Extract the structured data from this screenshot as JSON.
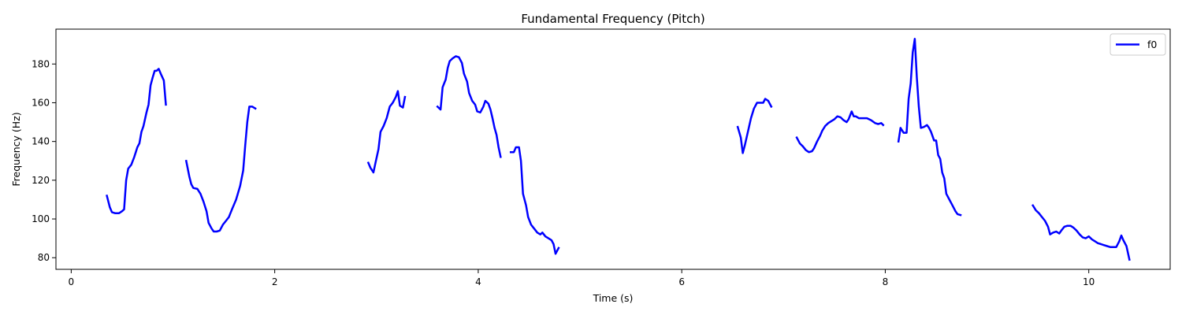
{
  "chart_data": {
    "type": "line",
    "title": "Fundamental Frequency (Pitch)",
    "xlabel": "Time (s)",
    "ylabel": "Frequency (Hz)",
    "xlim": [
      -0.15,
      10.8
    ],
    "ylim": [
      74,
      198
    ],
    "xticks": [
      0,
      2,
      4,
      6,
      8,
      10
    ],
    "yticks": [
      80,
      100,
      120,
      140,
      160,
      180
    ],
    "grid": false,
    "legend": "top-right",
    "series": [
      {
        "name": "f0",
        "color": "#0000ff",
        "segments": [
          [
            [
              0.35,
              112
            ],
            [
              0.38,
              106
            ],
            [
              0.4,
              103.5
            ],
            [
              0.43,
              103
            ],
            [
              0.47,
              103
            ],
            [
              0.5,
              104
            ],
            [
              0.52,
              105
            ],
            [
              0.54,
              120
            ],
            [
              0.56,
              126
            ],
            [
              0.59,
              128
            ],
            [
              0.62,
              132
            ],
            [
              0.65,
              137
            ],
            [
              0.67,
              139
            ],
            [
              0.69,
              145
            ],
            [
              0.71,
              148
            ],
            [
              0.74,
              155
            ],
            [
              0.76,
              159
            ],
            [
              0.78,
              169
            ],
            [
              0.8,
              173
            ],
            [
              0.82,
              176.5
            ],
            [
              0.84,
              176.5
            ],
            [
              0.86,
              177.5
            ],
            [
              0.88,
              175
            ],
            [
              0.91,
              171.5
            ],
            [
              0.93,
              159
            ]
          ],
          [
            [
              1.13,
              130
            ],
            [
              1.16,
              122
            ],
            [
              1.18,
              118
            ],
            [
              1.2,
              116
            ],
            [
              1.24,
              115.5
            ],
            [
              1.27,
              113
            ],
            [
              1.3,
              109
            ],
            [
              1.33,
              104
            ],
            [
              1.35,
              98
            ],
            [
              1.38,
              95
            ],
            [
              1.4,
              93.5
            ],
            [
              1.43,
              93.5
            ],
            [
              1.46,
              94
            ],
            [
              1.49,
              97
            ],
            [
              1.52,
              99
            ],
            [
              1.55,
              101
            ],
            [
              1.58,
              105
            ],
            [
              1.62,
              110
            ],
            [
              1.66,
              117
            ],
            [
              1.69,
              125
            ],
            [
              1.71,
              138
            ],
            [
              1.73,
              150
            ],
            [
              1.75,
              158
            ],
            [
              1.78,
              158
            ],
            [
              1.81,
              157
            ]
          ],
          [
            [
              2.92,
              129
            ],
            [
              2.94,
              126.5
            ],
            [
              2.97,
              124
            ],
            [
              2.99,
              129
            ],
            [
              3.02,
              136
            ],
            [
              3.04,
              145
            ],
            [
              3.07,
              148
            ],
            [
              3.1,
              152
            ],
            [
              3.13,
              158
            ],
            [
              3.16,
              160
            ],
            [
              3.19,
              163
            ],
            [
              3.21,
              166
            ],
            [
              3.23,
              158.5
            ],
            [
              3.26,
              157.5
            ],
            [
              3.28,
              163
            ]
          ],
          [
            [
              3.6,
              158
            ],
            [
              3.63,
              156.5
            ],
            [
              3.65,
              168
            ],
            [
              3.68,
              172
            ],
            [
              3.7,
              178
            ],
            [
              3.72,
              181.5
            ],
            [
              3.75,
              183
            ],
            [
              3.78,
              184
            ],
            [
              3.81,
              183.5
            ],
            [
              3.84,
              180.5
            ],
            [
              3.86,
              175
            ],
            [
              3.89,
              171
            ],
            [
              3.91,
              165
            ],
            [
              3.94,
              161
            ],
            [
              3.97,
              159
            ],
            [
              3.99,
              155.5
            ],
            [
              4.02,
              155
            ],
            [
              4.05,
              158
            ],
            [
              4.07,
              161
            ],
            [
              4.1,
              159.5
            ],
            [
              4.12,
              156.5
            ],
            [
              4.14,
              152
            ],
            [
              4.16,
              147
            ],
            [
              4.18,
              143.5
            ],
            [
              4.2,
              137
            ],
            [
              4.22,
              132
            ]
          ],
          [
            [
              4.32,
              134.5
            ],
            [
              4.35,
              134.5
            ],
            [
              4.37,
              137
            ],
            [
              4.4,
              137
            ],
            [
              4.42,
              130
            ],
            [
              4.44,
              113
            ],
            [
              4.47,
              107
            ],
            [
              4.49,
              101
            ],
            [
              4.52,
              97
            ],
            [
              4.55,
              95
            ],
            [
              4.58,
              93
            ],
            [
              4.61,
              92
            ],
            [
              4.63,
              93
            ],
            [
              4.66,
              91
            ],
            [
              4.69,
              90
            ],
            [
              4.72,
              89
            ],
            [
              4.74,
              87
            ],
            [
              4.76,
              82
            ],
            [
              4.79,
              85
            ]
          ],
          [
            [
              6.55,
              147.5
            ],
            [
              6.58,
              142
            ],
            [
              6.6,
              134
            ],
            [
              6.62,
              138
            ],
            [
              6.65,
              145
            ],
            [
              6.68,
              152
            ],
            [
              6.71,
              157
            ],
            [
              6.74,
              160
            ],
            [
              6.77,
              160
            ],
            [
              6.8,
              160
            ],
            [
              6.82,
              162
            ],
            [
              6.85,
              161
            ],
            [
              6.88,
              158
            ]
          ],
          [
            [
              7.13,
              142
            ],
            [
              7.16,
              139
            ],
            [
              7.19,
              137.5
            ],
            [
              7.22,
              135.5
            ],
            [
              7.25,
              134.5
            ],
            [
              7.28,
              135
            ],
            [
              7.3,
              136.5
            ],
            [
              7.33,
              140
            ],
            [
              7.36,
              143
            ],
            [
              7.38,
              145.5
            ],
            [
              7.41,
              148
            ],
            [
              7.44,
              149.5
            ],
            [
              7.47,
              150.5
            ],
            [
              7.5,
              151.5
            ],
            [
              7.53,
              153
            ],
            [
              7.56,
              152.5
            ],
            [
              7.59,
              151
            ],
            [
              7.62,
              150
            ],
            [
              7.64,
              151.5
            ],
            [
              7.67,
              155.5
            ],
            [
              7.69,
              153
            ],
            [
              7.71,
              153
            ],
            [
              7.74,
              152
            ],
            [
              7.78,
              152
            ],
            [
              7.82,
              152
            ],
            [
              7.86,
              151
            ],
            [
              7.9,
              149.5
            ],
            [
              7.93,
              149
            ],
            [
              7.96,
              149.5
            ],
            [
              7.98,
              148.5
            ]
          ],
          [
            [
              8.13,
              140
            ],
            [
              8.15,
              147
            ],
            [
              8.18,
              144.5
            ],
            [
              8.21,
              144.5
            ],
            [
              8.23,
              162
            ],
            [
              8.25,
              170
            ],
            [
              8.27,
              186
            ],
            [
              8.29,
              193
            ],
            [
              8.31,
              173
            ],
            [
              8.33,
              158
            ],
            [
              8.35,
              147
            ],
            [
              8.38,
              147.5
            ],
            [
              8.41,
              148.5
            ],
            [
              8.43,
              147
            ],
            [
              8.45,
              145
            ],
            [
              8.48,
              140.5
            ],
            [
              8.5,
              140.5
            ],
            [
              8.52,
              133
            ],
            [
              8.54,
              131
            ],
            [
              8.56,
              124
            ],
            [
              8.58,
              121
            ],
            [
              8.6,
              113
            ],
            [
              8.63,
              110
            ],
            [
              8.66,
              107
            ],
            [
              8.69,
              104
            ],
            [
              8.71,
              102.5
            ],
            [
              8.74,
              102
            ]
          ],
          [
            [
              9.45,
              107
            ],
            [
              9.48,
              104.5
            ],
            [
              9.51,
              103
            ],
            [
              9.54,
              101
            ],
            [
              9.57,
              99
            ],
            [
              9.6,
              96
            ],
            [
              9.62,
              92
            ],
            [
              9.65,
              93
            ],
            [
              9.68,
              93.5
            ],
            [
              9.71,
              92.5
            ],
            [
              9.73,
              94
            ],
            [
              9.76,
              96
            ],
            [
              9.79,
              96.5
            ],
            [
              9.82,
              96.5
            ],
            [
              9.85,
              95.5
            ],
            [
              9.88,
              94
            ],
            [
              9.91,
              92
            ],
            [
              9.94,
              90.5
            ],
            [
              9.97,
              90
            ],
            [
              10.0,
              91
            ],
            [
              10.03,
              89.5
            ],
            [
              10.06,
              88.5
            ],
            [
              10.09,
              87.5
            ],
            [
              10.12,
              87
            ],
            [
              10.15,
              86.5
            ],
            [
              10.18,
              86
            ],
            [
              10.21,
              85.5
            ],
            [
              10.24,
              85.5
            ],
            [
              10.27,
              85.5
            ],
            [
              10.3,
              88.5
            ],
            [
              10.32,
              91.5
            ],
            [
              10.34,
              89
            ],
            [
              10.37,
              86
            ],
            [
              10.4,
              79
            ]
          ]
        ]
      }
    ]
  }
}
